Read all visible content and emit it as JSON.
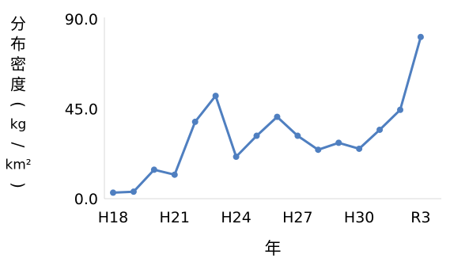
{
  "chart_data": {
    "type": "line",
    "title": "",
    "xlabel": "年",
    "ylabel": "分布密度(kg/km²)",
    "ylabel_chars": [
      "分",
      "布",
      "密",
      "度",
      "(",
      "kg",
      "/",
      "km²",
      ")"
    ],
    "x_tick_labels": [
      "H18",
      "H21",
      "H24",
      "H27",
      "H30",
      "R3"
    ],
    "y_tick_labels": [
      "0.0",
      "45.0",
      "90.0"
    ],
    "ylim": [
      0,
      90
    ],
    "grid": false,
    "legend": "none",
    "series": [
      {
        "x": [
          "H18",
          "H19",
          "H20",
          "H21",
          "H22",
          "H23",
          "H24",
          "H25",
          "H26",
          "H27",
          "H28",
          "H29",
          "H30",
          "R1",
          "R2",
          "R3"
        ],
        "values": [
          3.0,
          3.5,
          14.5,
          12.0,
          38.5,
          51.5,
          21.0,
          31.5,
          41.0,
          31.5,
          24.5,
          28.0,
          25.0,
          34.5,
          44.5,
          81.0
        ],
        "color": "#4f7fc0"
      }
    ]
  }
}
